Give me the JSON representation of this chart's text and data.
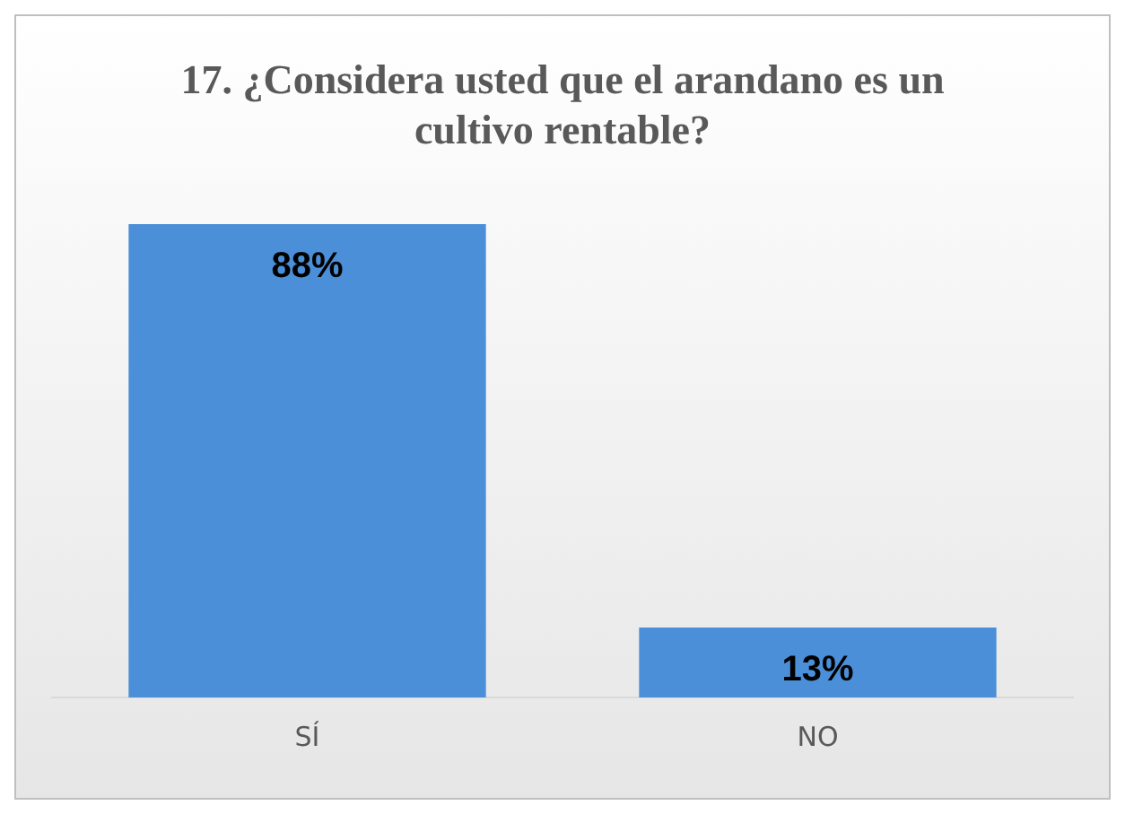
{
  "chart_data": {
    "type": "bar",
    "title": "17. ¿Considera usted que el arandano es un cultivo rentable?",
    "categories": [
      "SÍ",
      "NO"
    ],
    "values": [
      88,
      13
    ],
    "value_labels": [
      "88%",
      "13%"
    ],
    "color": "#4a8fd8",
    "grid": false,
    "legend": false
  }
}
